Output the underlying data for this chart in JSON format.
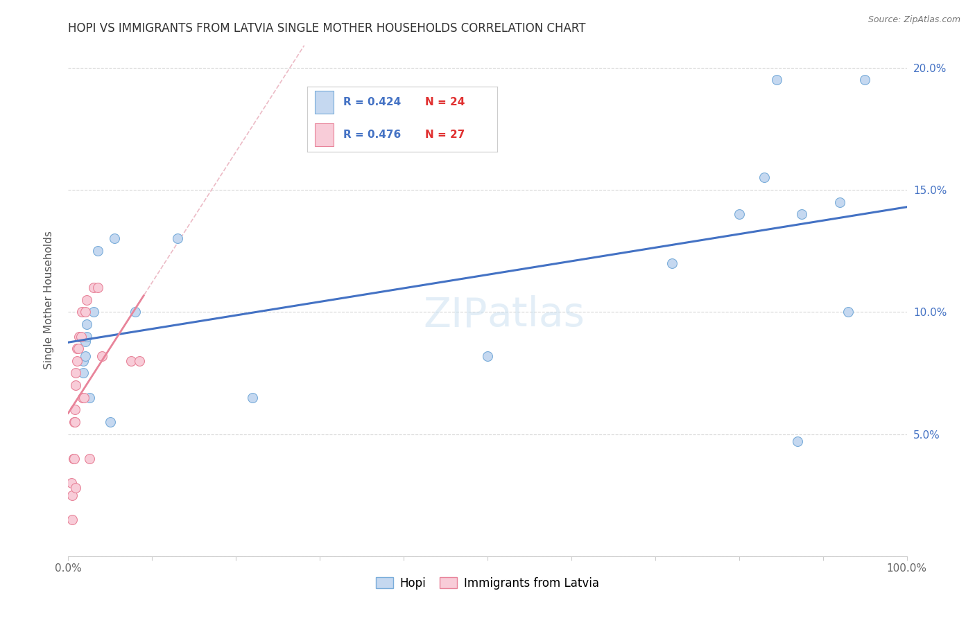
{
  "title": "HOPI VS IMMIGRANTS FROM LATVIA SINGLE MOTHER HOUSEHOLDS CORRELATION CHART",
  "source": "Source: ZipAtlas.com",
  "ylabel": "Single Mother Households",
  "xlim": [
    0,
    1.0
  ],
  "ylim": [
    0,
    0.21
  ],
  "xticks": [
    0.0,
    0.1,
    0.2,
    0.3,
    0.4,
    0.5,
    0.6,
    0.7,
    0.8,
    0.9,
    1.0
  ],
  "xtick_labels": [
    "0.0%",
    "",
    "",
    "",
    "",
    "",
    "",
    "",
    "",
    "",
    "100.0%"
  ],
  "yticks": [
    0.0,
    0.05,
    0.1,
    0.15,
    0.2
  ],
  "ytick_labels_left": [
    "",
    "",
    "",
    "",
    ""
  ],
  "ytick_labels_right": [
    "",
    "5.0%",
    "10.0%",
    "15.0%",
    "20.0%"
  ],
  "hopi_x": [
    0.018,
    0.018,
    0.02,
    0.02,
    0.022,
    0.022,
    0.025,
    0.03,
    0.035,
    0.05,
    0.055,
    0.08,
    0.13,
    0.22,
    0.5,
    0.72,
    0.8,
    0.83,
    0.845,
    0.87,
    0.875,
    0.92,
    0.93,
    0.95
  ],
  "hopi_y": [
    0.075,
    0.08,
    0.082,
    0.088,
    0.09,
    0.095,
    0.065,
    0.1,
    0.125,
    0.055,
    0.13,
    0.1,
    0.13,
    0.065,
    0.082,
    0.12,
    0.14,
    0.155,
    0.195,
    0.047,
    0.14,
    0.145,
    0.1,
    0.195
  ],
  "latvia_x": [
    0.004,
    0.005,
    0.005,
    0.006,
    0.007,
    0.007,
    0.008,
    0.008,
    0.009,
    0.009,
    0.009,
    0.01,
    0.01,
    0.012,
    0.013,
    0.015,
    0.016,
    0.017,
    0.019,
    0.02,
    0.022,
    0.025,
    0.03,
    0.035,
    0.04,
    0.075,
    0.085
  ],
  "latvia_y": [
    0.03,
    0.015,
    0.025,
    0.04,
    0.04,
    0.055,
    0.055,
    0.06,
    0.07,
    0.075,
    0.028,
    0.08,
    0.085,
    0.085,
    0.09,
    0.09,
    0.1,
    0.065,
    0.065,
    0.1,
    0.105,
    0.04,
    0.11,
    0.11,
    0.082,
    0.08,
    0.08
  ],
  "hopi_color": "#c5d8f0",
  "hopi_edge_color": "#7aadda",
  "latvia_color": "#f8ccd8",
  "latvia_edge_color": "#e8849a",
  "hopi_R": 0.424,
  "hopi_N": 24,
  "latvia_R": 0.476,
  "latvia_N": 27,
  "hopi_line_color": "#4472c4",
  "latvia_line_color": "#e8849a",
  "diagonal_color": "#e8aab8",
  "background_color": "#ffffff",
  "grid_color": "#d8d8d8",
  "right_tick_color": "#4472c4",
  "marker_size": 100
}
